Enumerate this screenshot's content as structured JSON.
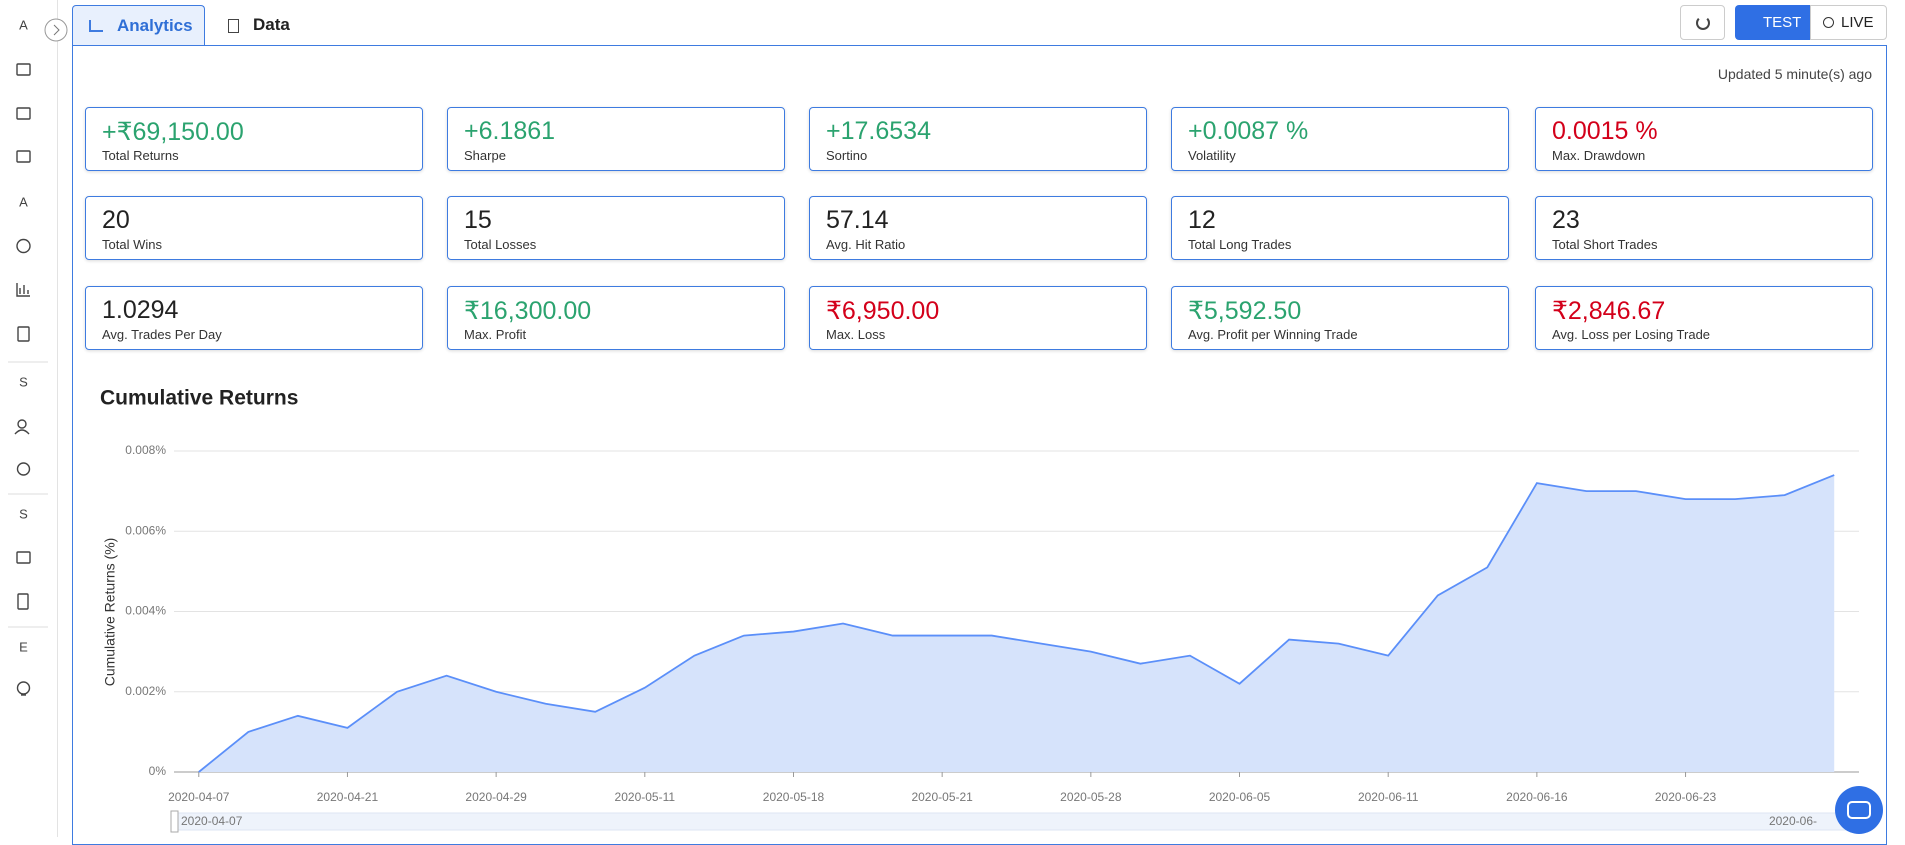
{
  "sidebar": {
    "letters": [
      "A",
      "A",
      "S",
      "S",
      "E"
    ]
  },
  "tabs": [
    "Analytics",
    "Data"
  ],
  "buttons": [
    "TEST",
    "LIVE"
  ],
  "updated": "Updated 5 minute(s) ago",
  "metrics": [
    {
      "value": "+₹69,150.00",
      "label": "Total Returns",
      "color": "#2ba36f"
    },
    {
      "value": "+6.1861",
      "label": "Sharpe",
      "color": "#2ba36f"
    },
    {
      "value": "+17.6534",
      "label": "Sortino",
      "color": "#2ba36f"
    },
    {
      "value": "+0.0087 %",
      "label": "Volatility",
      "color": "#2ba36f"
    },
    {
      "value": "0.0015 %",
      "label": "Max. Drawdown",
      "color": "#d3001a"
    },
    {
      "value": "20",
      "label": "Total Wins",
      "color": "#222222"
    },
    {
      "value": "15",
      "label": "Total Losses",
      "color": "#222222"
    },
    {
      "value": "57.14",
      "label": "Avg. Hit Ratio",
      "color": "#222222"
    },
    {
      "value": "12",
      "label": "Total Long Trades",
      "color": "#222222"
    },
    {
      "value": "23",
      "label": "Total Short Trades",
      "color": "#222222"
    },
    {
      "value": "1.0294",
      "label": "Avg. Trades Per Day",
      "color": "#222222"
    },
    {
      "value": "₹16,300.00",
      "label": "Max. Profit",
      "color": "#2ba36f"
    },
    {
      "value": "₹6,950.00",
      "label": "Max. Loss",
      "color": "#d3001a"
    },
    {
      "value": "₹5,592.50",
      "label": "Avg. Profit per Winning Trade",
      "color": "#2ba36f"
    },
    {
      "value": "₹2,846.67",
      "label": "Avg. Loss per Losing Trade",
      "color": "#d3001a"
    }
  ],
  "zoom": {
    "start": "2020-04-07",
    "end": "2020-06-"
  },
  "chart_data": {
    "type": "area",
    "title": "Cumulative Returns",
    "y_label": "Cumulative Returns (%)",
    "categories": [
      "2020-04-07",
      null,
      null,
      "2020-04-21",
      null,
      null,
      "2020-04-29",
      null,
      null,
      "2020-05-11",
      null,
      null,
      "2020-05-18",
      null,
      null,
      "2020-05-21",
      null,
      null,
      "2020-05-28",
      null,
      null,
      "2020-06-05",
      null,
      null,
      "2020-06-11",
      null,
      null,
      "2020-06-16",
      null,
      null,
      "2020-06-23",
      null,
      null,
      null
    ],
    "series": [
      {
        "name": "Cumulative Returns",
        "color": "#5b8ff9",
        "fill": "#d6e3fb",
        "values": [
          0,
          0.001,
          0.0014,
          0.0011,
          0.002,
          0.0024,
          0.002,
          0.0017,
          0.0015,
          0.0021,
          0.0029,
          0.0034,
          0.0035,
          0.0037,
          0.0034,
          0.0034,
          0.0034,
          0.0032,
          0.003,
          0.0027,
          0.0029,
          0.0022,
          0.0033,
          0.0032,
          0.0029,
          0.0044,
          0.0051,
          0.0072,
          0.007,
          0.007,
          0.0068,
          0.0068,
          0.0069,
          0.0074
        ]
      }
    ],
    "ylim": [
      0,
      0.008
    ],
    "yticks": [
      {
        "value": 0,
        "label": "0%"
      },
      {
        "value": 0.002,
        "label": "0.002%"
      },
      {
        "value": 0.004,
        "label": "0.004%"
      },
      {
        "value": 0.006,
        "label": "0.006%"
      },
      {
        "value": 0.008,
        "label": "0.008%"
      }
    ],
    "grid": true
  }
}
